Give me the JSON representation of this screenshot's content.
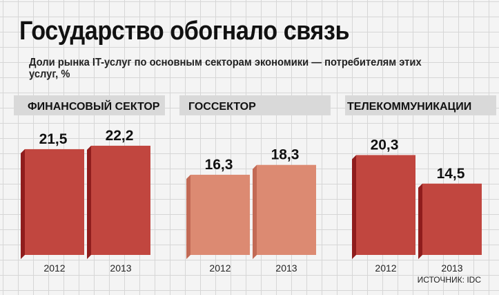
{
  "title": "Государство обогнало связь",
  "subtitle": "Доли рынка IT-услуг по основным секторам экономики — потребителям этих услуг, %",
  "source": "ИСТОЧНИК: IDC",
  "colors": {
    "dark_bar": "#c1463f",
    "dark_bar_side": "#8f1d1d",
    "light_bar": "#dc8a72",
    "light_bar_side": "#c26a55",
    "band": "#d9d9d9"
  },
  "chart_data": {
    "type": "bar",
    "title": "Государство обогнало связь",
    "subtitle": "Доли рынка IT-услуг по основным секторам экономики — потребителям этих услуг, %",
    "categories": [
      "ФИНАНСОВЫЙ СЕКТОР",
      "ГОССЕКТОР",
      "ТЕЛЕКОММУНИКАЦИИ"
    ],
    "years": [
      "2012",
      "2013"
    ],
    "series": [
      {
        "name": "2012",
        "values": [
          21.5,
          16.3,
          20.3
        ]
      },
      {
        "name": "2013",
        "values": [
          22.2,
          18.3,
          14.5
        ]
      }
    ],
    "value_labels": [
      [
        "21,5",
        "22,2"
      ],
      [
        "16,3",
        "18,3"
      ],
      [
        "20,3",
        "14,5"
      ]
    ],
    "ylim": [
      0,
      30
    ],
    "grid": true,
    "legend": "none"
  }
}
